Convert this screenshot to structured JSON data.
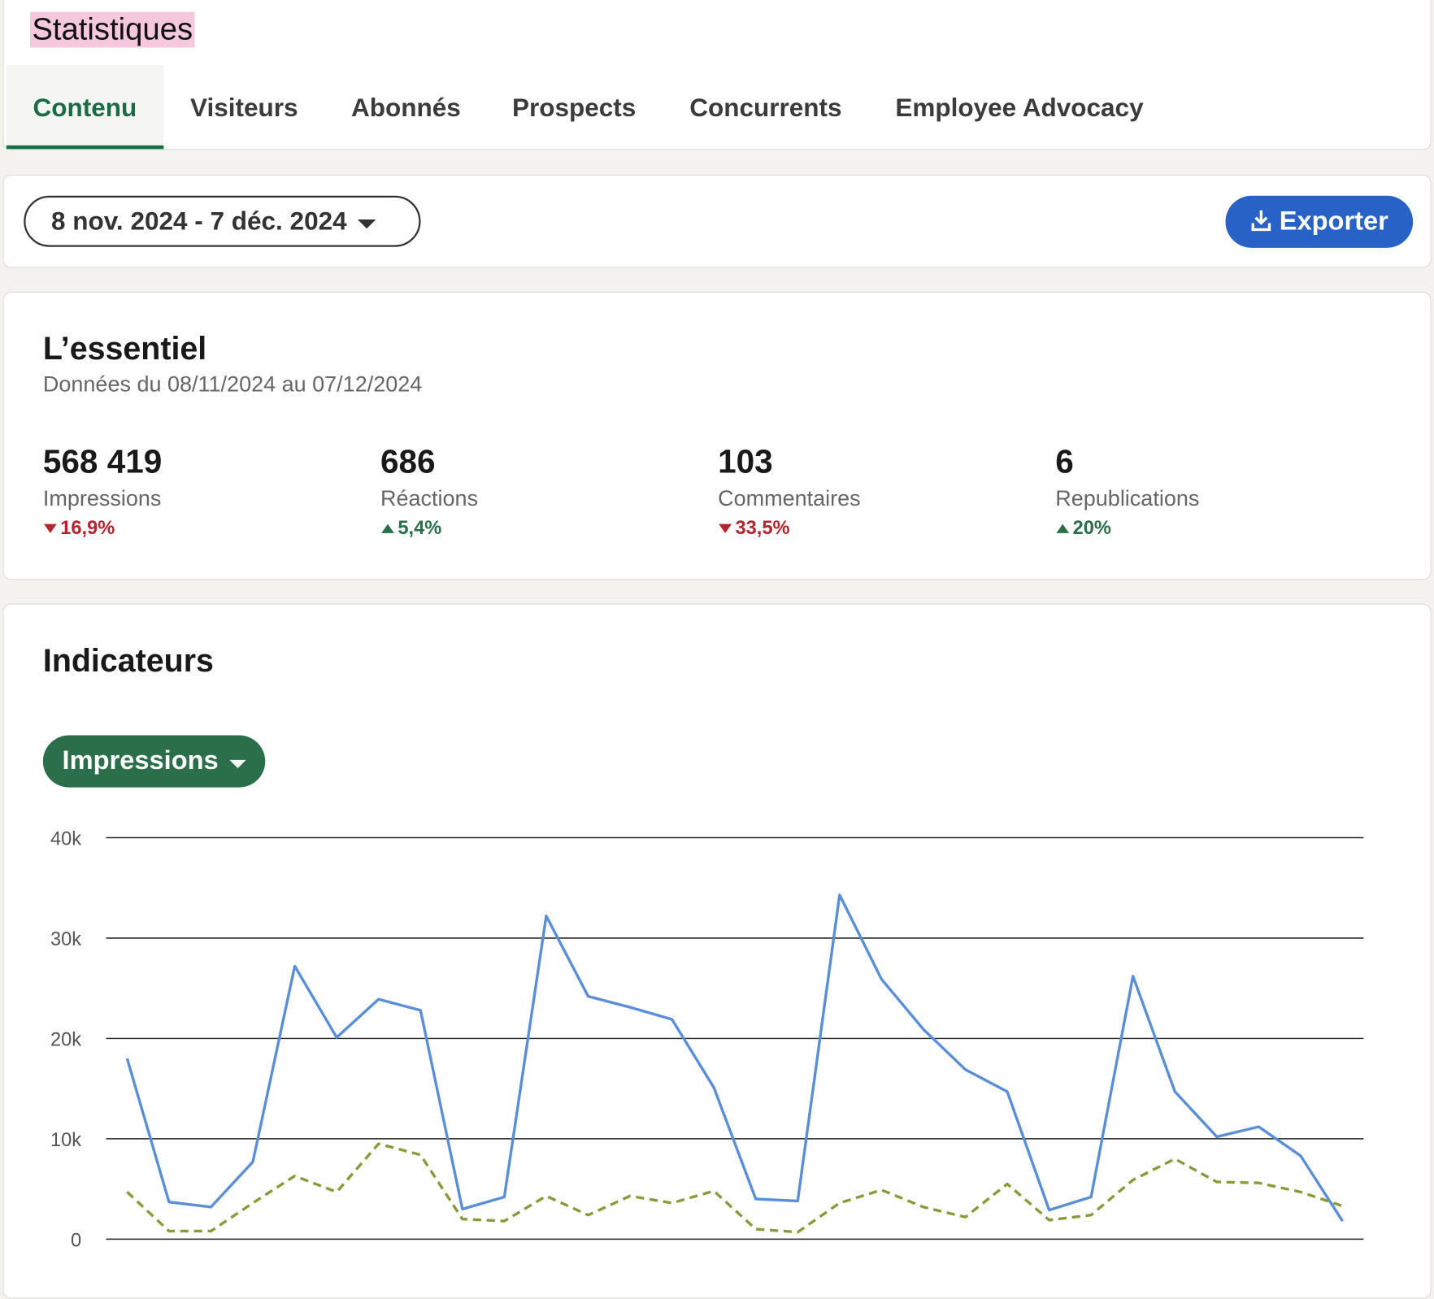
{
  "header": {
    "title": "Statistiques",
    "tabs": [
      "Contenu",
      "Visiteurs",
      "Abonnés",
      "Prospects",
      "Concurrents",
      "Employee Advocacy"
    ],
    "active_tab": 0
  },
  "filters": {
    "date_range": "8 nov. 2024 - 7 déc. 2024",
    "export": "Exporter"
  },
  "summary": {
    "title": "L’essentiel",
    "subtitle": "Données du 08/11/2024 au 07/12/2024",
    "metrics": [
      {
        "value": "568 419",
        "label": "Impressions",
        "change": "16,9%",
        "direction": "down"
      },
      {
        "value": "686",
        "label": "Réactions",
        "change": "5,4%",
        "direction": "up"
      },
      {
        "value": "103",
        "label": "Commentaires",
        "change": "33,5%",
        "direction": "down"
      },
      {
        "value": "6",
        "label": "Republications",
        "change": "20%",
        "direction": "up"
      }
    ]
  },
  "indicators": {
    "title": "Indicateurs",
    "metric_select": "Impressions"
  },
  "chart_data": {
    "type": "line",
    "categories": [
      null,
      null,
      null,
      null,
      null,
      null,
      null,
      null,
      null,
      null,
      null,
      null,
      null,
      null,
      null,
      null,
      null,
      null,
      null,
      null,
      null,
      null,
      null,
      null,
      null,
      null,
      null,
      null,
      null,
      null
    ],
    "series": [
      {
        "color": "#5a8fd8",
        "dashed": false,
        "values": [
          18000,
          3700,
          3200,
          7700,
          27200,
          20100,
          23900,
          22800,
          3000,
          4200,
          32200,
          24200,
          23100,
          21900,
          15100,
          4000,
          3800,
          34300,
          25900,
          20900,
          16900,
          14700,
          2900,
          4200,
          26200,
          14700,
          10200,
          11200,
          8300,
          1800
        ]
      },
      {
        "color": "#8a9a3a",
        "dashed": true,
        "values": [
          4700,
          800,
          800,
          3600,
          6300,
          4700,
          9500,
          8400,
          2000,
          1800,
          4300,
          2400,
          4300,
          3600,
          4800,
          1000,
          700,
          3600,
          4900,
          3200,
          2200,
          5500,
          1900,
          2400,
          5900,
          8000,
          5700,
          5600,
          4700,
          3300
        ]
      }
    ],
    "ylim": [
      0,
      40000
    ],
    "yticks": [
      {
        "value": 0,
        "label": "0"
      },
      {
        "value": 10000,
        "label": "10k"
      },
      {
        "value": 20000,
        "label": "20k"
      },
      {
        "value": 30000,
        "label": "30k"
      },
      {
        "value": 40000,
        "label": "40k"
      }
    ],
    "grid": true
  }
}
